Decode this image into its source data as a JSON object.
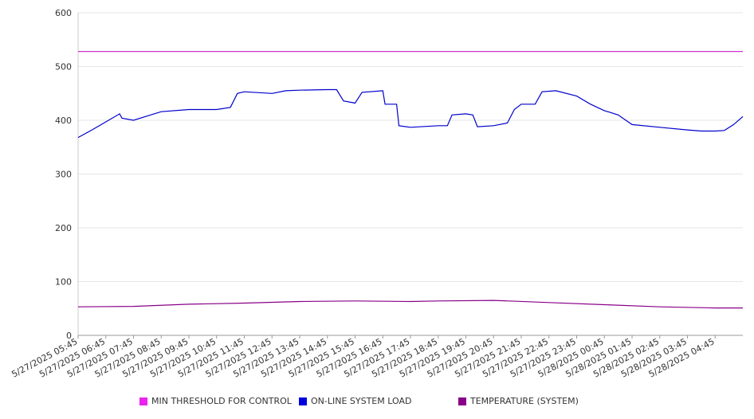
{
  "chart_data": {
    "type": "line",
    "ylim": [
      0,
      600
    ],
    "y_ticks": [
      "0",
      "100",
      "200",
      "300",
      "400",
      "500",
      "600"
    ],
    "grid": true,
    "legend_position": "bottom",
    "x_tick_labels": [
      "5/27/2025 05:45",
      "5/27/2025 06:45",
      "5/27/2025 07:45",
      "5/27/2025 08:45",
      "5/27/2025 09:45",
      "5/27/2025 10:45",
      "5/27/2025 11:45",
      "5/27/2025 12:45",
      "5/27/2025 13:45",
      "5/27/2025 14:45",
      "5/27/2025 15:45",
      "5/27/2025 16:45",
      "5/27/2025 17:45",
      "5/27/2025 18:45",
      "5/27/2025 19:45",
      "5/27/2025 20:45",
      "5/27/2025 21:45",
      "5/27/2025 22:45",
      "5/27/2025 23:45",
      "5/28/2025 00:45",
      "5/28/2025 01:45",
      "5/28/2025 02:45",
      "5/28/2025 03:45",
      "5/28/2025 04:45"
    ],
    "x_range": [
      "5/27/2025 05:45",
      "5/28/2025 05:45"
    ],
    "series": [
      {
        "name": "MIN THRESHOLD FOR CONTROL",
        "color": "#cc33cc",
        "points": [
          [
            "5/27/2025 05:45",
            528
          ],
          [
            "5/28/2025 05:45",
            528
          ]
        ]
      },
      {
        "name": "ON-LINE SYSTEM LOAD",
        "color": "#0000cc",
        "points": [
          [
            "5/27/2025 05:45",
            368
          ],
          [
            "5/27/2025 06:15",
            382
          ],
          [
            "5/27/2025 06:45",
            397
          ],
          [
            "5/27/2025 07:15",
            412
          ],
          [
            "5/27/2025 07:20",
            404
          ],
          [
            "5/27/2025 07:45",
            400
          ],
          [
            "5/27/2025 08:15",
            408
          ],
          [
            "5/27/2025 08:45",
            416
          ],
          [
            "5/27/2025 09:45",
            420
          ],
          [
            "5/27/2025 10:45",
            420
          ],
          [
            "5/27/2025 11:15",
            424
          ],
          [
            "5/27/2025 11:30",
            450
          ],
          [
            "5/27/2025 11:45",
            453
          ],
          [
            "5/27/2025 12:45",
            450
          ],
          [
            "5/27/2025 13:15",
            455
          ],
          [
            "5/27/2025 13:45",
            456
          ],
          [
            "5/27/2025 14:45",
            457
          ],
          [
            "5/27/2025 15:05",
            457
          ],
          [
            "5/27/2025 15:20",
            436
          ],
          [
            "5/27/2025 15:45",
            432
          ],
          [
            "5/27/2025 16:00",
            452
          ],
          [
            "5/27/2025 16:45",
            455
          ],
          [
            "5/27/2025 16:50",
            430
          ],
          [
            "5/27/2025 17:15",
            430
          ],
          [
            "5/27/2025 17:20",
            390
          ],
          [
            "5/27/2025 17:45",
            387
          ],
          [
            "5/27/2025 18:45",
            390
          ],
          [
            "5/27/2025 19:05",
            390
          ],
          [
            "5/27/2025 19:15",
            410
          ],
          [
            "5/27/2025 19:45",
            412
          ],
          [
            "5/27/2025 20:00",
            410
          ],
          [
            "5/27/2025 20:10",
            388
          ],
          [
            "5/27/2025 20:45",
            390
          ],
          [
            "5/27/2025 21:15",
            395
          ],
          [
            "5/27/2025 21:30",
            420
          ],
          [
            "5/27/2025 21:45",
            430
          ],
          [
            "5/27/2025 22:15",
            430
          ],
          [
            "5/27/2025 22:30",
            453
          ],
          [
            "5/27/2025 23:00",
            455
          ],
          [
            "5/27/2025 23:45",
            445
          ],
          [
            "5/28/2025 00:15",
            430
          ],
          [
            "5/28/2025 00:45",
            418
          ],
          [
            "5/28/2025 01:15",
            410
          ],
          [
            "5/28/2025 01:45",
            392
          ],
          [
            "5/28/2025 02:45",
            387
          ],
          [
            "5/28/2025 03:45",
            382
          ],
          [
            "5/28/2025 04:15",
            380
          ],
          [
            "5/28/2025 04:45",
            380
          ],
          [
            "5/28/2025 05:05",
            381
          ],
          [
            "5/28/2025 05:25",
            392
          ],
          [
            "5/28/2025 05:45",
            407
          ]
        ]
      },
      {
        "name": "TEMPERATURE (SYSTEM)",
        "color": "#880088",
        "points": [
          [
            "5/27/2025 05:45",
            53
          ],
          [
            "5/27/2025 07:45",
            54
          ],
          [
            "5/27/2025 09:45",
            58
          ],
          [
            "5/27/2025 11:45",
            60
          ],
          [
            "5/27/2025 13:45",
            63
          ],
          [
            "5/27/2025 15:45",
            64
          ],
          [
            "5/27/2025 17:45",
            63
          ],
          [
            "5/27/2025 18:45",
            64
          ],
          [
            "5/27/2025 20:45",
            65
          ],
          [
            "5/27/2025 22:45",
            61
          ],
          [
            "5/28/2025 00:45",
            57
          ],
          [
            "5/28/2025 02:45",
            53
          ],
          [
            "5/28/2025 04:45",
            51
          ],
          [
            "5/28/2025 05:45",
            51
          ]
        ]
      }
    ]
  },
  "legend": [
    {
      "label": "MIN THRESHOLD FOR CONTROL",
      "color": "#ee22ee"
    },
    {
      "label": "ON-LINE SYSTEM LOAD",
      "color": "#0000dd"
    },
    {
      "label": "TEMPERATURE (SYSTEM)",
      "color": "#880088"
    }
  ]
}
